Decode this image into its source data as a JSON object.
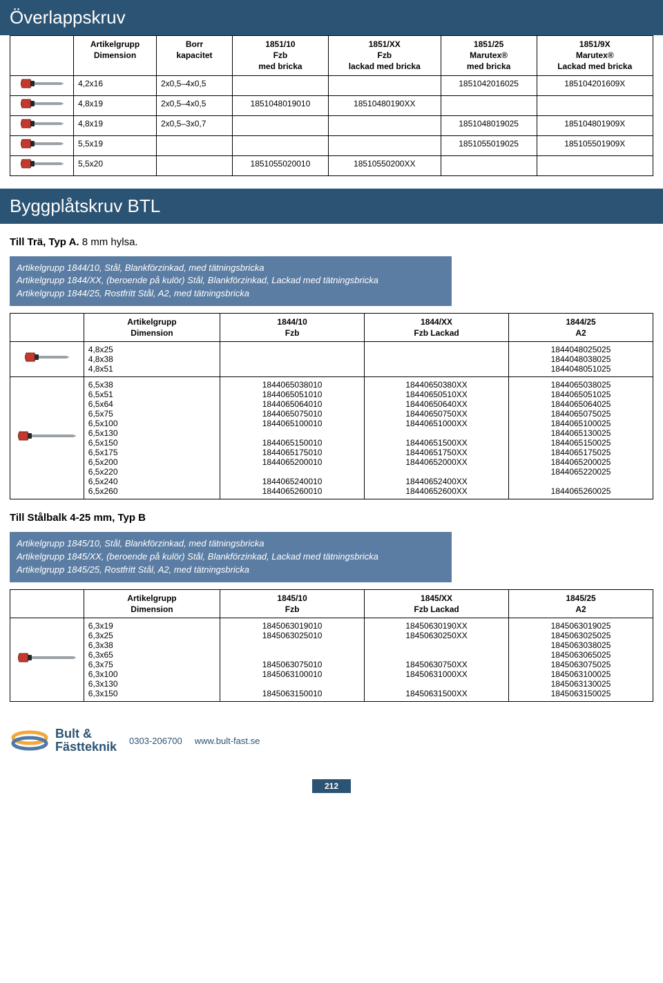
{
  "colors": {
    "banner_bg": "#2b5373",
    "infobox_bg": "#5b7da3",
    "text_light": "#ffffff",
    "page_bg": "#ffffff",
    "border": "#000000",
    "screw_head": "#c23a2e",
    "screw_shaft": "#9aa1a6",
    "washer": "#24282b",
    "logo_ring1": "#f2a73b",
    "logo_ring2": "#4f7aa8",
    "logo_text": "#2b5373"
  },
  "section1": {
    "title": "Överlappskruv",
    "header": {
      "col1": "Artikelgrupp\nDimension",
      "col2": "Borr\nkapacitet",
      "col3": "1851/10\nFzb\nmed bricka",
      "col4": "1851/XX\nFzb\nlackad med bricka",
      "col5": "1851/25\nMarutex®\nmed bricka",
      "col6": "1851/9X\nMarutex®\nLackad med bricka"
    },
    "rows": [
      {
        "dim": "4,2x16",
        "cap": "2x0,5–4x0,5",
        "c3": "",
        "c4": "",
        "c5": "1851042016025",
        "c6": "185104201609X"
      },
      {
        "dim": "4,8x19",
        "cap": "2x0,5–4x0,5",
        "c3": "1851048019010",
        "c4": "18510480190XX",
        "c5": "",
        "c6": ""
      },
      {
        "dim": "4,8x19",
        "cap": "2x0,5–3x0,7",
        "c3": "",
        "c4": "",
        "c5": "1851048019025",
        "c6": "185104801909X"
      },
      {
        "dim": "5,5x19",
        "cap": "",
        "c3": "",
        "c4": "",
        "c5": "1851055019025",
        "c6": "185105501909X"
      },
      {
        "dim": "5,5x20",
        "cap": "",
        "c3": "1851055020010",
        "c4": "18510550200XX",
        "c5": "",
        "c6": ""
      }
    ]
  },
  "section2": {
    "title": "Byggplåtskruv BTL",
    "sub_a": "Till Trä, Typ A.",
    "sub_a_note": "8 mm hylsa.",
    "info_a": [
      "Artikelgrupp 1844/10, Stål, Blankförzinkad, med tätningsbricka",
      "Artikelgrupp 1844/XX, (beroende på kulör) Stål, Blankförzinkad, Lackad med tätningsbricka",
      "Artikelgrupp 1844/25, Rostfritt Stål, A2, med tätningsbricka"
    ],
    "header_a": {
      "col1": "Artikelgrupp\nDimension",
      "col2": "1844/10\nFzb",
      "col3": "1844/XX\nFzb Lackad",
      "col4": "1844/25\nA2"
    },
    "group_small": {
      "dims": [
        "4,8x25",
        "4,8x38",
        "4,8x51"
      ],
      "c4": [
        "1844048025025",
        "1844048038025",
        "1844048051025"
      ]
    },
    "group_large": {
      "dims": [
        "6,5x38",
        "6,5x51",
        "6,5x64",
        "6,5x75",
        "6,5x100",
        "6,5x130",
        "6,5x150",
        "6,5x175",
        "6,5x200",
        "6,5x220",
        "6,5x240",
        "6,5x260"
      ],
      "c2": [
        "1844065038010",
        "1844065051010",
        "1844065064010",
        "1844065075010",
        "1844065100010",
        "",
        "1844065150010",
        "1844065175010",
        "1844065200010",
        "",
        "1844065240010",
        "1844065260010"
      ],
      "c3": [
        "18440650380XX",
        "18440650510XX",
        "18440650640XX",
        "18440650750XX",
        "18440651000XX",
        "",
        "18440651500XX",
        "18440651750XX",
        "18440652000XX",
        "",
        "18440652400XX",
        "18440652600XX"
      ],
      "c4": [
        "1844065038025",
        "1844065051025",
        "1844065064025",
        "1844065075025",
        "1844065100025",
        "1844065130025",
        "1844065150025",
        "1844065175025",
        "1844065200025",
        "1844065220025",
        "",
        "1844065260025"
      ]
    },
    "sub_b": "Till Stålbalk 4-25 mm, Typ B",
    "info_b": [
      "Artikelgrupp 1845/10, Stål, Blankförzinkad, med tätningsbricka",
      "Artikelgrupp 1845/XX, (beroende på kulör) Stål, Blankförzinkad, Lackad med tätningsbricka",
      "Artikelgrupp 1845/25, Rostfritt Stål, A2, med tätningsbricka"
    ],
    "header_b": {
      "col1": "Artikelgrupp\nDimension",
      "col2": "1845/10\nFzb",
      "col3": "1845/XX\nFzb Lackad",
      "col4": "1845/25\nA2"
    },
    "rows_b": [
      {
        "dim": "6,3x19",
        "c2": "1845063019010",
        "c3": "18450630190XX",
        "c4": "1845063019025"
      },
      {
        "dim": "6,3x25",
        "c2": "1845063025010",
        "c3": "18450630250XX",
        "c4": "1845063025025"
      },
      {
        "dim": "6,3x38",
        "c2": "",
        "c3": "",
        "c4": "1845063038025"
      },
      {
        "dim": "6,3x65",
        "c2": "",
        "c3": "",
        "c4": "1845063065025"
      },
      {
        "dim": "6,3x75",
        "c2": "1845063075010",
        "c3": "18450630750XX",
        "c4": "1845063075025"
      },
      {
        "dim": "6,3x100",
        "c2": "1845063100010",
        "c3": "18450631000XX",
        "c4": "1845063100025"
      },
      {
        "dim": "6,3x130",
        "c2": "",
        "c3": "",
        "c4": "1845063130025"
      },
      {
        "dim": "6,3x150",
        "c2": "1845063150010",
        "c3": "18450631500XX",
        "c4": "1845063150025"
      }
    ]
  },
  "footer": {
    "brand_l1": "Bult &",
    "brand_l2": "Fästteknik",
    "phone": "0303-206700",
    "url": "www.bult-fast.se",
    "page": "212"
  }
}
